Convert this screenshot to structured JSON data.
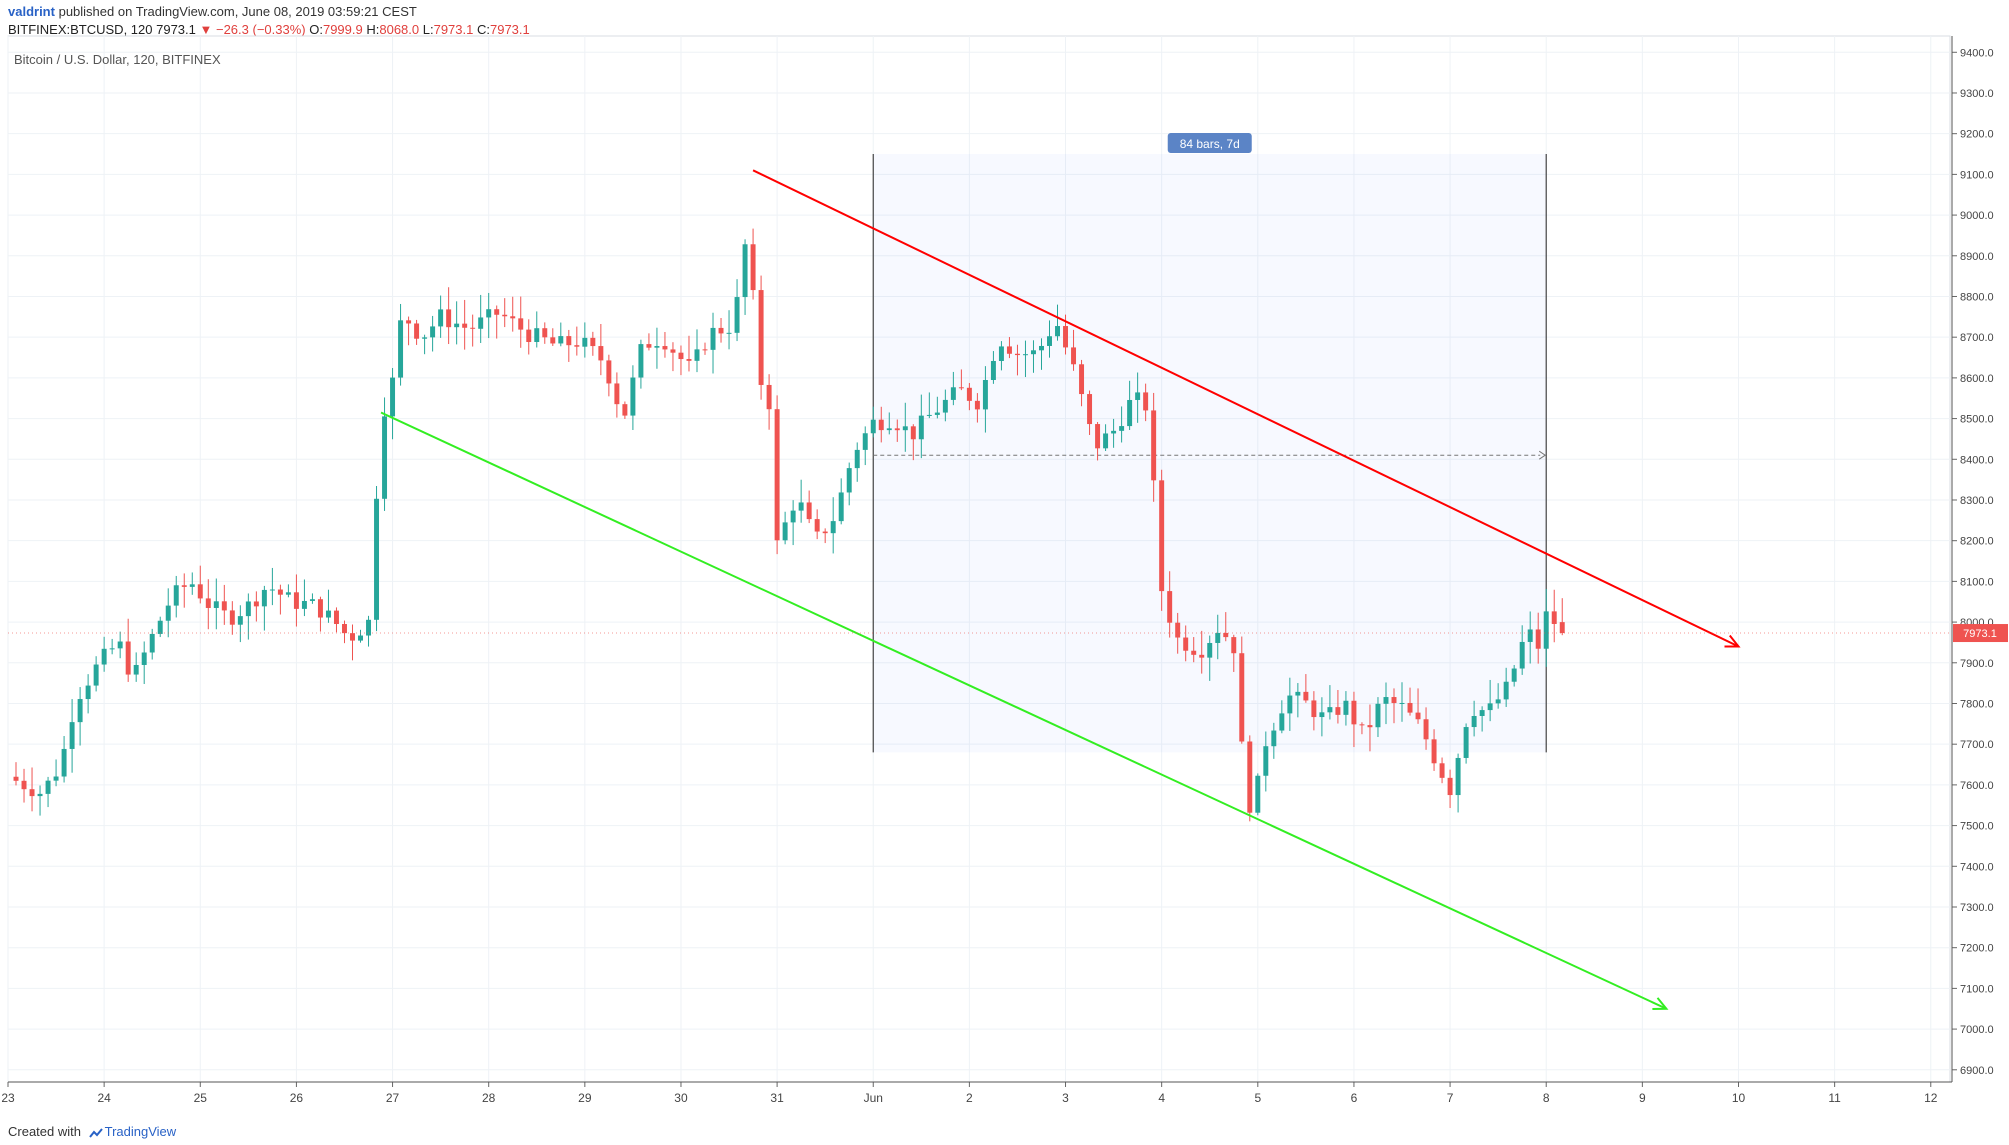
{
  "header": {
    "user": "valdrint",
    "published_text": "published on TradingView.com, June 08, 2019 03:59:21 CEST",
    "symbol_line": "BITFINEX:BTCUSD, 120",
    "last": "7973.1",
    "change": "▼ −26.3 (−0.33%)",
    "o_label": "O:",
    "o_value": "7999.9",
    "h_label": "H:",
    "h_value": "8068.0",
    "l_label": "L:",
    "l_value": "7973.1",
    "c_label": "C:",
    "c_value": "7973.1",
    "pair_title": "Bitcoin / U.S. Dollar, 120, BITFINEX"
  },
  "footer": {
    "created_with": "Created with",
    "brand": "TradingView"
  },
  "colors": {
    "up": "#26a69a",
    "down": "#ef5350",
    "grid": "#eef2f6",
    "resistance": "#ff0000",
    "support": "#33ee22",
    "accent": "#2962c6",
    "measure_badge": "#5b84c6"
  },
  "chart_data": {
    "type": "candlestick",
    "title": "Bitcoin / U.S. Dollar, 120, BITFINEX",
    "y_ticks": [
      "9400.0",
      "9300.0",
      "9200.0",
      "9100.0",
      "9000.0",
      "8900.0",
      "8800.0",
      "8700.0",
      "8600.0",
      "8500.0",
      "8400.0",
      "8300.0",
      "8200.0",
      "8100.0",
      "8000.0",
      "7900.0",
      "7800.0",
      "7700.0",
      "7600.0",
      "7500.0",
      "7400.0",
      "7300.0",
      "7200.0",
      "7100.0",
      "7000.0",
      "6900.0"
    ],
    "ylim": [
      6870,
      9440
    ],
    "x_ticks": [
      {
        "label": "23",
        "day": 0
      },
      {
        "label": "24",
        "day": 1
      },
      {
        "label": "25",
        "day": 2
      },
      {
        "label": "26",
        "day": 3
      },
      {
        "label": "27",
        "day": 4
      },
      {
        "label": "28",
        "day": 5
      },
      {
        "label": "29",
        "day": 6
      },
      {
        "label": "30",
        "day": 7
      },
      {
        "label": "31",
        "day": 8
      },
      {
        "label": "Jun",
        "day": 9
      },
      {
        "label": "2",
        "day": 10
      },
      {
        "label": "3",
        "day": 11
      },
      {
        "label": "4",
        "day": 12
      },
      {
        "label": "5",
        "day": 13
      },
      {
        "label": "6",
        "day": 14
      },
      {
        "label": "7",
        "day": 15
      },
      {
        "label": "8",
        "day": 16
      },
      {
        "label": "9",
        "day": 17
      },
      {
        "label": "10",
        "day": 18
      },
      {
        "label": "11",
        "day": 19
      },
      {
        "label": "12",
        "day": 20
      }
    ],
    "xlim_days": [
      0,
      20.2
    ],
    "last_price": "7973.1",
    "close_path": [
      [
        0.0,
        7620
      ],
      [
        0.35,
        7580
      ],
      [
        0.55,
        7650
      ],
      [
        0.7,
        7810
      ],
      [
        0.95,
        7900
      ],
      [
        1.15,
        7950
      ],
      [
        1.3,
        7860
      ],
      [
        1.55,
        7990
      ],
      [
        1.7,
        8060
      ],
      [
        1.9,
        8100
      ],
      [
        2.1,
        8040
      ],
      [
        2.3,
        8010
      ],
      [
        2.5,
        8040
      ],
      [
        2.7,
        8090
      ],
      [
        2.95,
        8050
      ],
      [
        3.2,
        8040
      ],
      [
        3.4,
        8000
      ],
      [
        3.55,
        7960
      ],
      [
        3.75,
        8000
      ],
      [
        3.88,
        8500
      ],
      [
        4.0,
        8590
      ],
      [
        4.1,
        8760
      ],
      [
        4.3,
        8700
      ],
      [
        4.5,
        8750
      ],
      [
        4.8,
        8720
      ],
      [
        5.1,
        8760
      ],
      [
        5.4,
        8710
      ],
      [
        5.7,
        8680
      ],
      [
        5.95,
        8690
      ],
      [
        6.2,
        8640
      ],
      [
        6.4,
        8500
      ],
      [
        6.6,
        8680
      ],
      [
        6.8,
        8700
      ],
      [
        7.1,
        8620
      ],
      [
        7.3,
        8710
      ],
      [
        7.55,
        8730
      ],
      [
        7.7,
        8980
      ],
      [
        7.8,
        8610
      ],
      [
        7.95,
        8520
      ],
      [
        8.0,
        8190
      ],
      [
        8.2,
        8310
      ],
      [
        8.4,
        8200
      ],
      [
        8.6,
        8260
      ],
      [
        8.8,
        8420
      ],
      [
        9.0,
        8490
      ],
      [
        9.2,
        8500
      ],
      [
        9.4,
        8460
      ],
      [
        9.6,
        8510
      ],
      [
        9.9,
        8570
      ],
      [
        10.1,
        8540
      ],
      [
        10.3,
        8700
      ],
      [
        10.5,
        8660
      ],
      [
        10.7,
        8660
      ],
      [
        10.9,
        8740
      ],
      [
        11.1,
        8610
      ],
      [
        11.3,
        8430
      ],
      [
        11.5,
        8470
      ],
      [
        11.7,
        8550
      ],
      [
        11.85,
        8530
      ],
      [
        12.0,
        8080
      ],
      [
        12.15,
        7960
      ],
      [
        12.4,
        7930
      ],
      [
        12.6,
        7990
      ],
      [
        12.75,
        7940
      ],
      [
        12.85,
        7640
      ],
      [
        12.95,
        7510
      ],
      [
        13.05,
        7690
      ],
      [
        13.3,
        7820
      ],
      [
        13.5,
        7800
      ],
      [
        13.7,
        7760
      ],
      [
        13.9,
        7800
      ],
      [
        14.1,
        7720
      ],
      [
        14.3,
        7810
      ],
      [
        14.5,
        7790
      ],
      [
        14.7,
        7740
      ],
      [
        14.85,
        7660
      ],
      [
        15.0,
        7590
      ],
      [
        15.2,
        7790
      ],
      [
        15.4,
        7780
      ],
      [
        15.6,
        7840
      ],
      [
        15.8,
        7980
      ],
      [
        15.95,
        7930
      ],
      [
        16.05,
        8100
      ],
      [
        16.1,
        7950
      ],
      [
        16.2,
        7973
      ]
    ],
    "annotations": {
      "resistance_line": {
        "from": [
          7.75,
          9110
        ],
        "to": [
          18.0,
          7940
        ],
        "color": "red"
      },
      "support_line": {
        "from": [
          3.88,
          8515
        ],
        "to": [
          17.25,
          7050
        ],
        "color": "green"
      },
      "measure": {
        "label": "84 bars, 7d",
        "from_day": 9.0,
        "to_day": 16.0,
        "y_top": 9150,
        "y_bottom": 7680,
        "price_level": 8410
      }
    }
  }
}
